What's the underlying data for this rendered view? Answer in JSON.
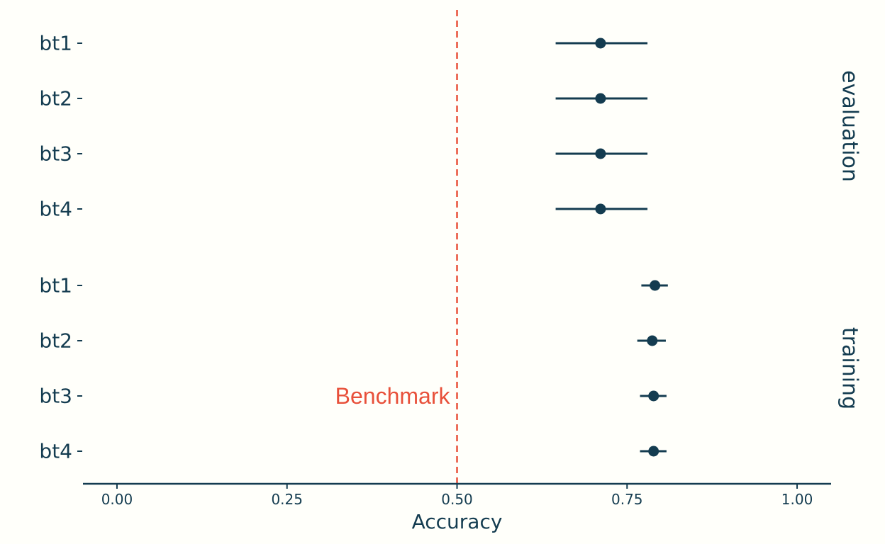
{
  "chart_data": {
    "type": "scatter",
    "subtype": "point-range (estimate with interval)",
    "title": "",
    "xlabel": "Accuracy",
    "ylabel": "",
    "xlim": [
      -0.05,
      1.05
    ],
    "x_ticks": [
      0.0,
      0.25,
      0.5,
      0.75,
      1.0
    ],
    "x_tick_labels": [
      "0.00",
      "0.25",
      "0.50",
      "0.75",
      "1.00"
    ],
    "grid": false,
    "legend": "none",
    "colors": {
      "point": "#143c50",
      "benchmark": "#e8503a",
      "background": "#fffffa",
      "text": "#143c50"
    },
    "benchmark": {
      "x": 0.5,
      "label": "Benchmark",
      "style": "dashed"
    },
    "facets": [
      {
        "name": "evaluation",
        "rows": [
          {
            "label": "bt1",
            "estimate": 0.711,
            "lower": 0.645,
            "upper": 0.78
          },
          {
            "label": "bt2",
            "estimate": 0.711,
            "lower": 0.645,
            "upper": 0.78
          },
          {
            "label": "bt3",
            "estimate": 0.711,
            "lower": 0.645,
            "upper": 0.78
          },
          {
            "label": "bt4",
            "estimate": 0.711,
            "lower": 0.645,
            "upper": 0.78
          }
        ]
      },
      {
        "name": "training",
        "rows": [
          {
            "label": "bt1",
            "estimate": 0.791,
            "lower": 0.771,
            "upper": 0.81
          },
          {
            "label": "bt2",
            "estimate": 0.787,
            "lower": 0.765,
            "upper": 0.807
          },
          {
            "label": "bt3",
            "estimate": 0.789,
            "lower": 0.769,
            "upper": 0.808
          },
          {
            "label": "bt4",
            "estimate": 0.789,
            "lower": 0.769,
            "upper": 0.808
          }
        ]
      }
    ]
  }
}
